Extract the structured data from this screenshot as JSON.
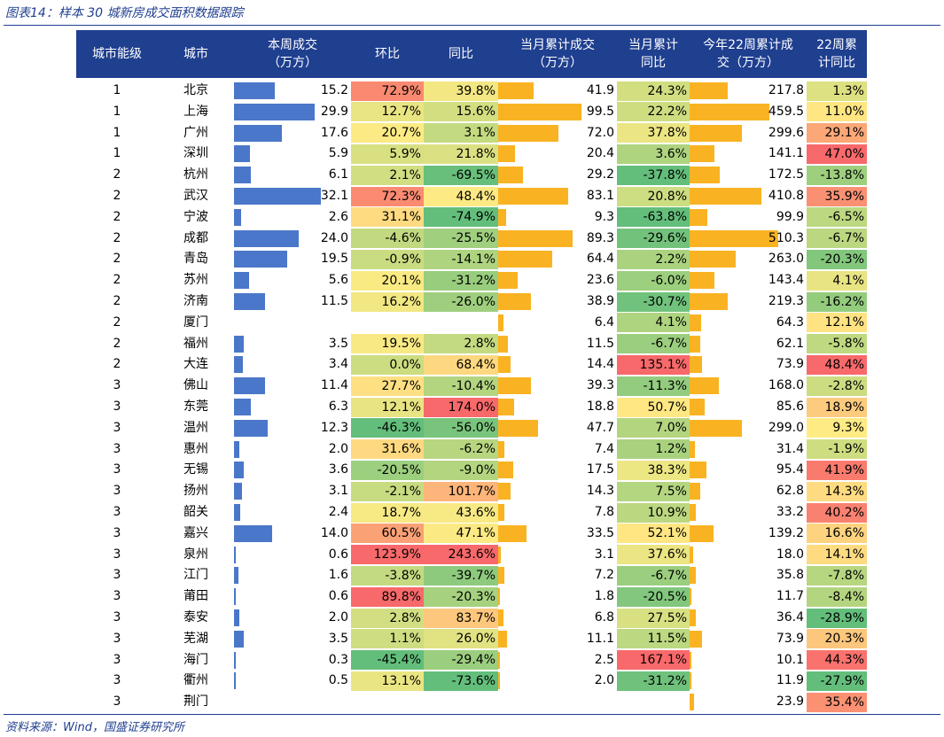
{
  "figure_title": "图表14：样本 30 城新房成交面积数据跟踪",
  "source": "资料来源：Wind，国盛证券研究所",
  "colors": {
    "header_bg": "#1f3f8f",
    "blue_bar": "#4a77c9",
    "orange_bar": "#f9b322",
    "heat_low": "#63be7b",
    "heat_mid": "#ffeb84",
    "heat_high": "#f8696b"
  },
  "chart_data": {
    "type": "table",
    "headers": [
      "城市能级",
      "城市",
      "本周成交\n（万方）",
      "环比",
      "同比",
      "当月累计成交\n（万方）",
      "当月累计\n同比",
      "今年22周累计成\n交（万方）",
      "22周累\n计同比"
    ],
    "rows": [
      {
        "tier": "1",
        "city": "北京",
        "week": 15.2,
        "week_str": "15.2",
        "wow": "72.9%",
        "yoy": "39.8%",
        "mtd": 41.9,
        "mtd_str": "41.9",
        "mtd_yoy": "24.3%",
        "ytd": 217.8,
        "ytd_str": "217.8",
        "ytd_yoy": "1.3%"
      },
      {
        "tier": "1",
        "city": "上海",
        "week": 29.9,
        "week_str": "29.9",
        "wow": "12.7%",
        "yoy": "15.6%",
        "mtd": 99.5,
        "mtd_str": "99.5",
        "mtd_yoy": "22.2%",
        "ytd": 459.5,
        "ytd_str": "459.5",
        "ytd_yoy": "11.0%"
      },
      {
        "tier": "1",
        "city": "广州",
        "week": 17.6,
        "week_str": "17.6",
        "wow": "20.7%",
        "yoy": "3.1%",
        "mtd": 72.0,
        "mtd_str": "72.0",
        "mtd_yoy": "37.8%",
        "ytd": 299.6,
        "ytd_str": "299.6",
        "ytd_yoy": "29.1%"
      },
      {
        "tier": "1",
        "city": "深圳",
        "week": 5.9,
        "week_str": "5.9",
        "wow": "5.9%",
        "yoy": "21.8%",
        "mtd": 20.4,
        "mtd_str": "20.4",
        "mtd_yoy": "3.6%",
        "ytd": 141.1,
        "ytd_str": "141.1",
        "ytd_yoy": "47.0%"
      },
      {
        "tier": "2",
        "city": "杭州",
        "week": 6.1,
        "week_str": "6.1",
        "wow": "2.1%",
        "yoy": "-69.5%",
        "mtd": 29.2,
        "mtd_str": "29.2",
        "mtd_yoy": "-37.8%",
        "ytd": 172.5,
        "ytd_str": "172.5",
        "ytd_yoy": "-13.8%"
      },
      {
        "tier": "2",
        "city": "武汉",
        "week": 32.1,
        "week_str": "32.1",
        "wow": "72.3%",
        "yoy": "48.4%",
        "mtd": 83.1,
        "mtd_str": "83.1",
        "mtd_yoy": "20.8%",
        "ytd": 410.8,
        "ytd_str": "410.8",
        "ytd_yoy": "35.9%"
      },
      {
        "tier": "2",
        "city": "宁波",
        "week": 2.6,
        "week_str": "2.6",
        "wow": "31.1%",
        "yoy": "-74.9%",
        "mtd": 9.3,
        "mtd_str": "9.3",
        "mtd_yoy": "-63.8%",
        "ytd": 99.9,
        "ytd_str": "99.9",
        "ytd_yoy": "-6.5%"
      },
      {
        "tier": "2",
        "city": "成都",
        "week": 24.0,
        "week_str": "24.0",
        "wow": "-4.6%",
        "yoy": "-25.5%",
        "mtd": 89.3,
        "mtd_str": "89.3",
        "mtd_yoy": "-29.6%",
        "ytd": 510.3,
        "ytd_str": "510.3",
        "ytd_yoy": "-6.7%"
      },
      {
        "tier": "2",
        "city": "青岛",
        "week": 19.5,
        "week_str": "19.5",
        "wow": "-0.9%",
        "yoy": "-14.1%",
        "mtd": 64.4,
        "mtd_str": "64.4",
        "mtd_yoy": "2.2%",
        "ytd": 263.0,
        "ytd_str": "263.0",
        "ytd_yoy": "-20.3%"
      },
      {
        "tier": "2",
        "city": "苏州",
        "week": 5.6,
        "week_str": "5.6",
        "wow": "20.1%",
        "yoy": "-31.2%",
        "mtd": 23.6,
        "mtd_str": "23.6",
        "mtd_yoy": "-6.0%",
        "ytd": 143.4,
        "ytd_str": "143.4",
        "ytd_yoy": "4.1%"
      },
      {
        "tier": "2",
        "city": "济南",
        "week": 11.5,
        "week_str": "11.5",
        "wow": "16.2%",
        "yoy": "-26.0%",
        "mtd": 38.9,
        "mtd_str": "38.9",
        "mtd_yoy": "-30.7%",
        "ytd": 219.3,
        "ytd_str": "219.3",
        "ytd_yoy": "-16.2%"
      },
      {
        "tier": "2",
        "city": "厦门",
        "week": null,
        "week_str": "",
        "wow": "",
        "yoy": "",
        "mtd": 6.4,
        "mtd_str": "6.4",
        "mtd_yoy": "4.1%",
        "ytd": 64.3,
        "ytd_str": "64.3",
        "ytd_yoy": "12.1%"
      },
      {
        "tier": "2",
        "city": "福州",
        "week": 3.5,
        "week_str": "3.5",
        "wow": "19.5%",
        "yoy": "2.8%",
        "mtd": 11.5,
        "mtd_str": "11.5",
        "mtd_yoy": "-6.7%",
        "ytd": 62.1,
        "ytd_str": "62.1",
        "ytd_yoy": "-5.8%"
      },
      {
        "tier": "2",
        "city": "大连",
        "week": 3.4,
        "week_str": "3.4",
        "wow": "0.0%",
        "yoy": "68.4%",
        "mtd": 14.4,
        "mtd_str": "14.4",
        "mtd_yoy": "135.1%",
        "ytd": 73.9,
        "ytd_str": "73.9",
        "ytd_yoy": "48.4%"
      },
      {
        "tier": "3",
        "city": "佛山",
        "week": 11.4,
        "week_str": "11.4",
        "wow": "27.7%",
        "yoy": "-10.4%",
        "mtd": 39.3,
        "mtd_str": "39.3",
        "mtd_yoy": "-11.3%",
        "ytd": 168.0,
        "ytd_str": "168.0",
        "ytd_yoy": "-2.8%"
      },
      {
        "tier": "3",
        "city": "东莞",
        "week": 6.3,
        "week_str": "6.3",
        "wow": "12.1%",
        "yoy": "174.0%",
        "mtd": 18.8,
        "mtd_str": "18.8",
        "mtd_yoy": "50.7%",
        "ytd": 85.6,
        "ytd_str": "85.6",
        "ytd_yoy": "18.9%"
      },
      {
        "tier": "3",
        "city": "温州",
        "week": 12.3,
        "week_str": "12.3",
        "wow": "-46.3%",
        "yoy": "-56.0%",
        "mtd": 47.7,
        "mtd_str": "47.7",
        "mtd_yoy": "7.0%",
        "ytd": 299.0,
        "ytd_str": "299.0",
        "ytd_yoy": "9.3%"
      },
      {
        "tier": "3",
        "city": "惠州",
        "week": 2.0,
        "week_str": "2.0",
        "wow": "31.6%",
        "yoy": "-6.2%",
        "mtd": 7.4,
        "mtd_str": "7.4",
        "mtd_yoy": "1.2%",
        "ytd": 31.4,
        "ytd_str": "31.4",
        "ytd_yoy": "-1.9%"
      },
      {
        "tier": "3",
        "city": "无锡",
        "week": 3.6,
        "week_str": "3.6",
        "wow": "-20.5%",
        "yoy": "-9.0%",
        "mtd": 17.5,
        "mtd_str": "17.5",
        "mtd_yoy": "38.3%",
        "ytd": 95.4,
        "ytd_str": "95.4",
        "ytd_yoy": "41.9%"
      },
      {
        "tier": "3",
        "city": "扬州",
        "week": 3.1,
        "week_str": "3.1",
        "wow": "-2.1%",
        "yoy": "101.7%",
        "mtd": 14.3,
        "mtd_str": "14.3",
        "mtd_yoy": "7.5%",
        "ytd": 62.8,
        "ytd_str": "62.8",
        "ytd_yoy": "14.3%"
      },
      {
        "tier": "3",
        "city": "韶关",
        "week": 2.4,
        "week_str": "2.4",
        "wow": "18.7%",
        "yoy": "43.6%",
        "mtd": 7.8,
        "mtd_str": "7.8",
        "mtd_yoy": "10.9%",
        "ytd": 33.2,
        "ytd_str": "33.2",
        "ytd_yoy": "40.2%"
      },
      {
        "tier": "3",
        "city": "嘉兴",
        "week": 14.0,
        "week_str": "14.0",
        "wow": "60.5%",
        "yoy": "47.1%",
        "mtd": 33.5,
        "mtd_str": "33.5",
        "mtd_yoy": "52.1%",
        "ytd": 139.2,
        "ytd_str": "139.2",
        "ytd_yoy": "16.6%"
      },
      {
        "tier": "3",
        "city": "泉州",
        "week": 0.6,
        "week_str": "0.6",
        "wow": "123.9%",
        "yoy": "243.6%",
        "mtd": 3.1,
        "mtd_str": "3.1",
        "mtd_yoy": "37.6%",
        "ytd": 18.0,
        "ytd_str": "18.0",
        "ytd_yoy": "14.1%"
      },
      {
        "tier": "3",
        "city": "江门",
        "week": 1.6,
        "week_str": "1.6",
        "wow": "-3.8%",
        "yoy": "-39.7%",
        "mtd": 7.2,
        "mtd_str": "7.2",
        "mtd_yoy": "-6.7%",
        "ytd": 35.8,
        "ytd_str": "35.8",
        "ytd_yoy": "-7.8%"
      },
      {
        "tier": "3",
        "city": "莆田",
        "week": 0.6,
        "week_str": "0.6",
        "wow": "89.8%",
        "yoy": "-20.3%",
        "mtd": 1.8,
        "mtd_str": "1.8",
        "mtd_yoy": "-20.5%",
        "ytd": 11.7,
        "ytd_str": "11.7",
        "ytd_yoy": "-8.4%"
      },
      {
        "tier": "3",
        "city": "泰安",
        "week": 2.0,
        "week_str": "2.0",
        "wow": "2.8%",
        "yoy": "83.7%",
        "mtd": 6.8,
        "mtd_str": "6.8",
        "mtd_yoy": "27.5%",
        "ytd": 36.4,
        "ytd_str": "36.4",
        "ytd_yoy": "-28.9%"
      },
      {
        "tier": "3",
        "city": "芜湖",
        "week": 3.5,
        "week_str": "3.5",
        "wow": "1.1%",
        "yoy": "26.0%",
        "mtd": 11.1,
        "mtd_str": "11.1",
        "mtd_yoy": "11.5%",
        "ytd": 73.9,
        "ytd_str": "73.9",
        "ytd_yoy": "20.3%"
      },
      {
        "tier": "3",
        "city": "海门",
        "week": 0.3,
        "week_str": "0.3",
        "wow": "-45.4%",
        "yoy": "-29.4%",
        "mtd": 2.5,
        "mtd_str": "2.5",
        "mtd_yoy": "167.1%",
        "ytd": 10.1,
        "ytd_str": "10.1",
        "ytd_yoy": "44.3%"
      },
      {
        "tier": "3",
        "city": "衢州",
        "week": 0.5,
        "week_str": "0.5",
        "wow": "13.1%",
        "yoy": "-73.6%",
        "mtd": 2.0,
        "mtd_str": "2.0",
        "mtd_yoy": "-31.2%",
        "ytd": 11.9,
        "ytd_str": "11.9",
        "ytd_yoy": "-27.9%"
      },
      {
        "tier": "3",
        "city": "荆门",
        "week": null,
        "week_str": "",
        "wow": "",
        "yoy": "",
        "mtd": null,
        "mtd_str": "",
        "mtd_yoy": "",
        "ytd": 23.9,
        "ytd_str": "23.9",
        "ytd_yoy": "35.4%"
      }
    ]
  }
}
